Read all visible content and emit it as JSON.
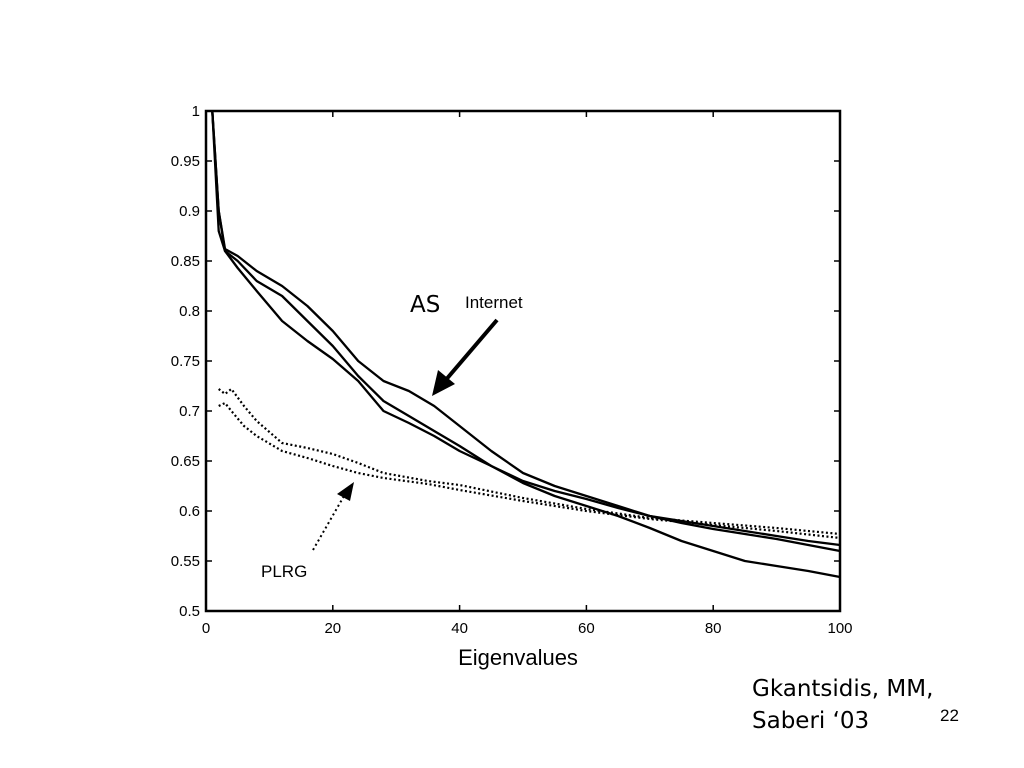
{
  "slide": {
    "citation_line1": "Gkantsidis, MM,",
    "citation_line2": "Saberi ‘03",
    "page_number": "22"
  },
  "chart_data": {
    "type": "line",
    "title": "",
    "xlabel": "Eigenvalues",
    "ylabel": "",
    "xlim": [
      0,
      100
    ],
    "ylim": [
      0.5,
      1.0
    ],
    "x_ticks": [
      0,
      20,
      40,
      60,
      80,
      100
    ],
    "y_ticks": [
      0.5,
      0.55,
      0.6,
      0.65,
      0.7,
      0.75,
      0.8,
      0.85,
      0.9,
      0.95,
      1
    ],
    "x_tick_labels": [
      "0",
      "20",
      "40",
      "60",
      "80",
      "100"
    ],
    "y_tick_labels": [
      "0.5",
      "0.55",
      "0.6",
      "0.65",
      "0.7",
      "0.75",
      "0.8",
      "0.85",
      "0.9",
      "0.95",
      "1"
    ],
    "grid": false,
    "annotations": [
      {
        "text": "AS",
        "style": "big"
      },
      {
        "text": "Internet",
        "style": "normal"
      },
      {
        "text": "PLRG",
        "style": "normal"
      }
    ],
    "series": [
      {
        "style": "solid",
        "x": [
          1,
          2,
          3,
          5,
          8,
          12,
          16,
          20,
          24,
          28,
          32,
          36,
          40,
          45,
          50,
          55,
          60,
          65,
          70,
          75,
          80,
          85,
          90,
          95,
          100
        ],
        "y": [
          1.0,
          0.9,
          0.862,
          0.855,
          0.84,
          0.825,
          0.805,
          0.78,
          0.75,
          0.73,
          0.72,
          0.705,
          0.685,
          0.66,
          0.638,
          0.625,
          0.615,
          0.605,
          0.595,
          0.59,
          0.585,
          0.58,
          0.575,
          0.57,
          0.566
        ]
      },
      {
        "style": "solid",
        "x": [
          1,
          2,
          3,
          5,
          8,
          12,
          16,
          20,
          24,
          28,
          32,
          36,
          40,
          45,
          50,
          55,
          60,
          65,
          70,
          75,
          80,
          85,
          90,
          95,
          100
        ],
        "y": [
          1.0,
          0.9,
          0.86,
          0.85,
          0.83,
          0.815,
          0.79,
          0.765,
          0.735,
          0.71,
          0.695,
          0.68,
          0.665,
          0.645,
          0.63,
          0.62,
          0.612,
          0.603,
          0.595,
          0.588,
          0.582,
          0.577,
          0.572,
          0.566,
          0.56
        ]
      },
      {
        "style": "solid",
        "x": [
          1,
          2,
          3,
          5,
          8,
          12,
          16,
          20,
          24,
          28,
          32,
          36,
          40,
          45,
          50,
          55,
          60,
          65,
          70,
          75,
          80,
          85,
          90,
          95,
          100
        ],
        "y": [
          1.0,
          0.88,
          0.86,
          0.843,
          0.82,
          0.79,
          0.77,
          0.752,
          0.73,
          0.7,
          0.688,
          0.675,
          0.66,
          0.645,
          0.628,
          0.615,
          0.605,
          0.595,
          0.583,
          0.57,
          0.56,
          0.55,
          0.545,
          0.54,
          0.534
        ]
      },
      {
        "style": "dotted",
        "x": [
          2,
          3,
          4,
          6,
          8,
          12,
          16,
          20,
          24,
          28,
          35,
          40,
          50,
          60,
          70,
          80,
          90,
          100
        ],
        "y": [
          0.722,
          0.717,
          0.722,
          0.705,
          0.69,
          0.668,
          0.663,
          0.657,
          0.648,
          0.638,
          0.63,
          0.626,
          0.613,
          0.602,
          0.593,
          0.588,
          0.583,
          0.577
        ]
      },
      {
        "style": "dotted",
        "x": [
          2,
          3,
          4,
          6,
          8,
          12,
          16,
          20,
          24,
          28,
          35,
          40,
          50,
          60,
          70,
          80,
          90,
          100
        ],
        "y": [
          0.705,
          0.708,
          0.7,
          0.685,
          0.675,
          0.66,
          0.653,
          0.645,
          0.638,
          0.633,
          0.627,
          0.621,
          0.61,
          0.6,
          0.592,
          0.586,
          0.58,
          0.573
        ]
      }
    ]
  }
}
